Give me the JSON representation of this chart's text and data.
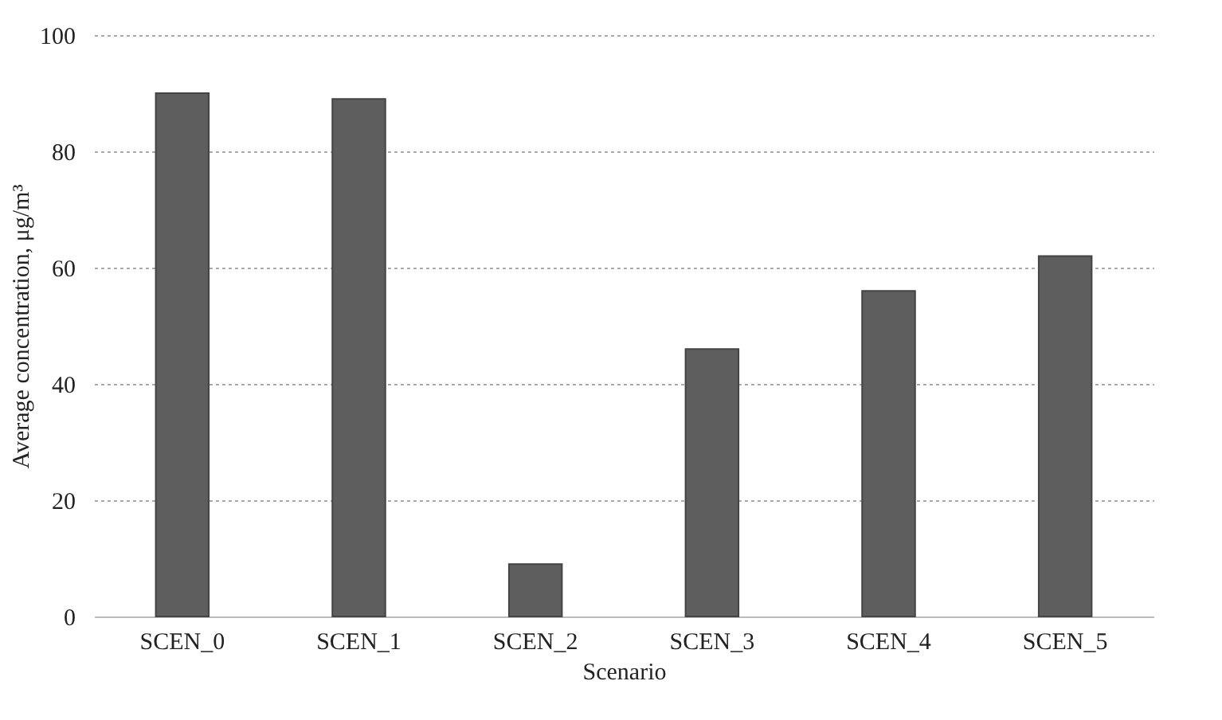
{
  "chart_data": {
    "type": "bar",
    "xlabel": "Scenario",
    "ylabel": "Average concentration, μg/m³",
    "categories": [
      "SCEN_0",
      "SCEN_1",
      "SCEN_2",
      "SCEN_3",
      "SCEN_4",
      "SCEN_5"
    ],
    "values": [
      90,
      89,
      9,
      46,
      56,
      62
    ],
    "color": "#5e5e5e",
    "ylim": [
      0,
      100
    ],
    "yticks": [
      0,
      20,
      40,
      60,
      80,
      100
    ],
    "grid": "y"
  }
}
